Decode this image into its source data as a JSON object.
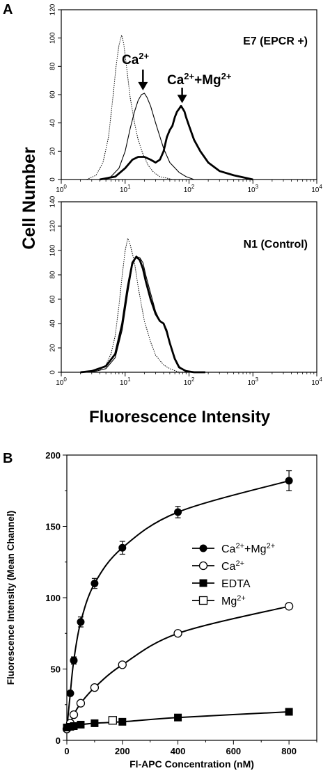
{
  "figure": {
    "panel_a_label": "A",
    "panel_b_label": "B",
    "shared_ylabel": "Cell Number",
    "shared_xlabel": "Fluorescence Intensity"
  },
  "chart_data": [
    {
      "type": "line",
      "panel": "A-top",
      "annotation": "E7 (EPCR +)",
      "arrow_labels": {
        "ca": "Ca",
        "ca_sup": "2+",
        "camg_a": "Ca",
        "camg_a_sup": "2+",
        "camg_b": "+Mg",
        "camg_b_sup": "2+"
      },
      "xscale": "log",
      "xlim": [
        1,
        10000
      ],
      "ylim": [
        0,
        120
      ],
      "y_ticks": [
        "0",
        "20",
        "40",
        "60",
        "80",
        "100",
        "120"
      ],
      "x_ticks": [
        {
          "base": "10",
          "exp": "0"
        },
        {
          "base": "10",
          "exp": "1"
        },
        {
          "base": "10",
          "exp": "2"
        },
        {
          "base": "10",
          "exp": "3"
        },
        {
          "base": "10",
          "exp": "4"
        }
      ],
      "series": [
        {
          "style": "dotted",
          "x": [
            2.5,
            3.5,
            4.5,
            5.5,
            6.5,
            7.2,
            8,
            8.8,
            9.5,
            10.5,
            12,
            14,
            16,
            19,
            23,
            28,
            35,
            45,
            55
          ],
          "y": [
            0,
            3,
            12,
            30,
            60,
            80,
            95,
            102,
            96,
            80,
            58,
            40,
            28,
            18,
            10,
            5,
            2,
            1,
            0
          ]
        },
        {
          "style": "thin",
          "x": [
            4,
            6,
            8,
            10,
            12,
            14,
            16,
            18,
            20,
            22,
            25,
            30,
            40,
            50,
            70,
            90,
            120
          ],
          "y": [
            0,
            2,
            8,
            20,
            36,
            48,
            56,
            60,
            61,
            58,
            52,
            40,
            22,
            12,
            5,
            2,
            0
          ]
        },
        {
          "style": "thick",
          "x": [
            4,
            7,
            10,
            13,
            16,
            20,
            25,
            30,
            35,
            40,
            45,
            50,
            55,
            60,
            65,
            70,
            75,
            80,
            85,
            90,
            100,
            120,
            150,
            200,
            300,
            500,
            800,
            1000
          ],
          "y": [
            0,
            2,
            8,
            14,
            16,
            16,
            14,
            12,
            14,
            20,
            30,
            35,
            38,
            44,
            48,
            50,
            52,
            50,
            48,
            44,
            38,
            28,
            20,
            12,
            6,
            3,
            1,
            0
          ]
        }
      ]
    },
    {
      "type": "line",
      "panel": "A-bottom",
      "annotation": "N1 (Control)",
      "xscale": "log",
      "xlim": [
        1,
        10000
      ],
      "ylim": [
        0,
        140
      ],
      "y_ticks": [
        "0",
        "20",
        "40",
        "60",
        "80",
        "100",
        "120",
        "140"
      ],
      "x_ticks": [
        {
          "base": "10",
          "exp": "0"
        },
        {
          "base": "10",
          "exp": "1"
        },
        {
          "base": "10",
          "exp": "2"
        },
        {
          "base": "10",
          "exp": "3"
        },
        {
          "base": "10",
          "exp": "4"
        }
      ],
      "series": [
        {
          "style": "dotted",
          "x": [
            3,
            4,
            5,
            6,
            7,
            8,
            9,
            10,
            11,
            12,
            14,
            16,
            18,
            20,
            25,
            30,
            40,
            50,
            70
          ],
          "y": [
            0,
            2,
            6,
            15,
            30,
            55,
            80,
            100,
            110,
            105,
            90,
            70,
            55,
            42,
            25,
            14,
            6,
            3,
            0
          ]
        },
        {
          "style": "thin",
          "x": [
            3,
            5,
            7,
            9,
            11,
            13,
            15,
            17,
            19,
            21,
            25,
            30,
            35,
            40,
            45,
            50,
            60,
            70,
            90
          ],
          "y": [
            0,
            3,
            12,
            35,
            65,
            88,
            95,
            94,
            90,
            80,
            65,
            50,
            42,
            40,
            35,
            25,
            12,
            5,
            0
          ]
        },
        {
          "style": "thick",
          "x": [
            2,
            3,
            5,
            7,
            9,
            11,
            13,
            15,
            17,
            19,
            21,
            25,
            30,
            35,
            40,
            45,
            50,
            60,
            70,
            90,
            120,
            180
          ],
          "y": [
            0,
            1,
            5,
            15,
            40,
            70,
            90,
            95,
            92,
            85,
            75,
            60,
            48,
            42,
            40,
            33,
            24,
            11,
            4,
            1,
            0,
            0
          ]
        }
      ]
    },
    {
      "type": "scatter",
      "panel": "B",
      "xlabel": "Fl-APC Concentration (nM)",
      "ylabel": "Fluorescence Intensity (Mean Channel)",
      "xlim": [
        0,
        900
      ],
      "ylim": [
        0,
        200
      ],
      "x_ticks": [
        "0",
        "200",
        "400",
        "600",
        "800"
      ],
      "y_ticks": [
        "0",
        "50",
        "100",
        "150",
        "200"
      ],
      "series": [
        {
          "name": "Ca",
          "name_sup": "2+",
          "name_b": "+Mg",
          "name_b_sup": "2+",
          "marker": "filled-circle",
          "x": [
            12.5,
            25,
            50,
            100,
            200,
            400,
            800
          ],
          "y": [
            33,
            56,
            83,
            110,
            135,
            160,
            182
          ],
          "err": [
            1.5,
            2.5,
            3.5,
            3.5,
            4.5,
            4,
            7
          ]
        },
        {
          "name": "Ca",
          "name_sup": "2+",
          "name_b": "",
          "name_b_sup": "",
          "marker": "open-circle",
          "x": [
            0,
            12.5,
            25,
            50,
            100,
            200,
            400,
            800
          ],
          "y": [
            8,
            12,
            18,
            26,
            37,
            53,
            75,
            94
          ],
          "err": [
            0,
            0,
            0,
            0,
            0,
            0,
            0,
            0
          ]
        },
        {
          "name": "EDTA",
          "name_sup": "",
          "name_b": "",
          "name_b_sup": "",
          "marker": "filled-square",
          "x": [
            0,
            12.5,
            25,
            50,
            100,
            200,
            400,
            800
          ],
          "y": [
            9,
            9.5,
            10,
            11,
            12,
            13,
            16,
            20
          ],
          "err": [
            0,
            0,
            0,
            0,
            0,
            0,
            0,
            0
          ]
        },
        {
          "name": "Mg",
          "name_sup": "2+",
          "name_b": "",
          "name_b_sup": "",
          "marker": "open-square",
          "x": [
            165
          ],
          "y": [
            14
          ],
          "err": [
            0
          ]
        }
      ]
    }
  ]
}
